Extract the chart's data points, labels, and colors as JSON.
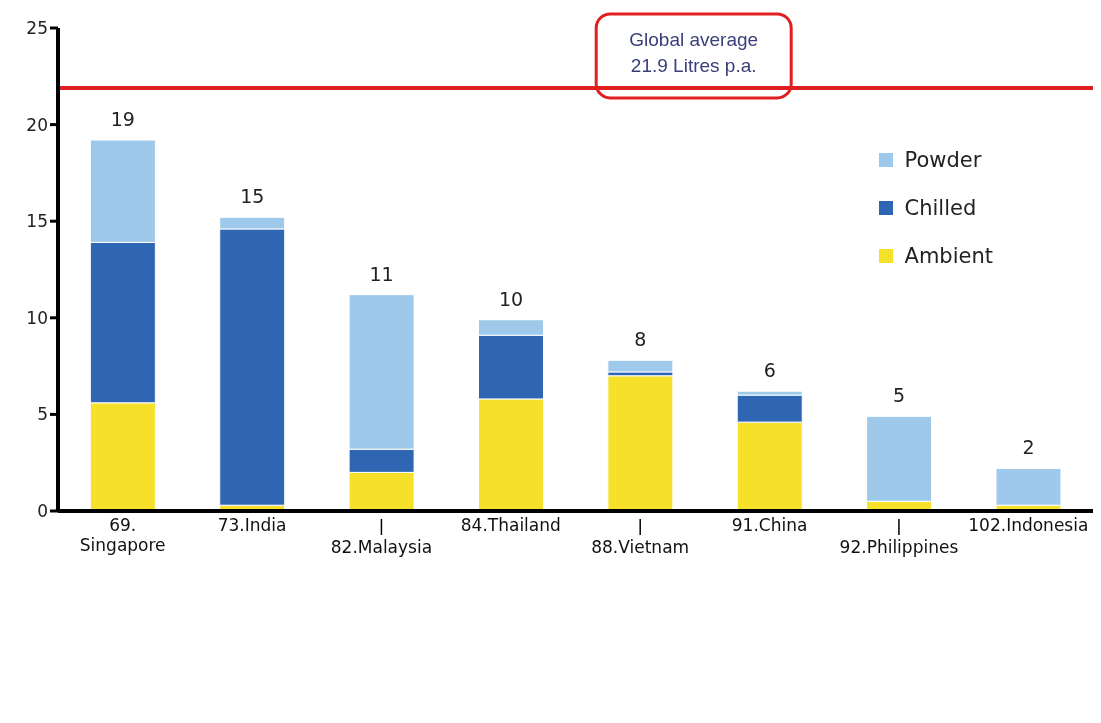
{
  "chart_data": {
    "type": "bar",
    "stacked": true,
    "categories": [
      "69.\nSingapore",
      "73.India",
      "82.Malaysia",
      "84.Thailand",
      "88.Vietnam",
      "91.China",
      "92.Philippines",
      "102.Indonesia"
    ],
    "series": [
      {
        "name": "Ambient",
        "color": "#f7e02a",
        "values": [
          5.6,
          0.3,
          2.0,
          5.8,
          7.0,
          4.6,
          0.5,
          0.3
        ]
      },
      {
        "name": "Chilled",
        "color": "#2f66b3",
        "values": [
          8.3,
          14.3,
          1.2,
          3.3,
          0.2,
          1.4,
          0,
          0
        ]
      },
      {
        "name": "Powder",
        "color": "#9fc9ea",
        "values": [
          5.3,
          0.6,
          8.0,
          0.8,
          0.6,
          0.2,
          4.4,
          1.9
        ]
      }
    ],
    "totals": [
      "19",
      "15",
      "11",
      "10",
      "8",
      "6",
      "5",
      "2"
    ],
    "ylim": [
      0,
      25
    ],
    "yticks": [
      0,
      5,
      10,
      15,
      20,
      25
    ],
    "grid": false,
    "legend": "top right",
    "ref_lines": [
      {
        "axis": "y",
        "value": 21.9,
        "label": "Global average\n21.9 Litres p.a.",
        "color": "#e02020"
      }
    ]
  }
}
